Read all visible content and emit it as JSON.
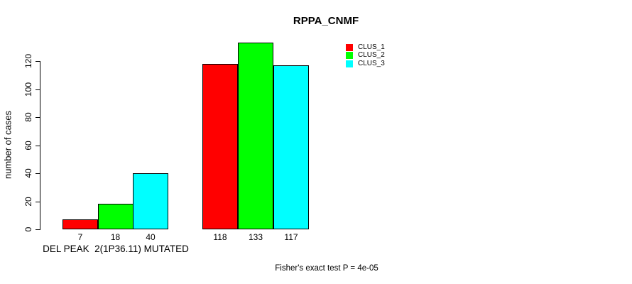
{
  "title": "RPPA_CNMF",
  "y_axis": {
    "label": "number of cases",
    "ticks": [
      0,
      20,
      40,
      60,
      80,
      100,
      120
    ]
  },
  "x_axis": {
    "label": "DEL PEAK  2(1P36.11) MUTATED"
  },
  "legend": {
    "items": [
      {
        "label": "CLUS_1",
        "color": "#FF0000"
      },
      {
        "label": "CLUS_2",
        "color": "#00FF00"
      },
      {
        "label": "CLUS_3",
        "color": "#00FFFF"
      }
    ]
  },
  "footer": "Fisher's exact test P = 4e-05",
  "chart_data": {
    "type": "bar",
    "title": "RPPA_CNMF",
    "xlabel": "DEL PEAK  2(1P36.11) MUTATED",
    "ylabel": "number of cases",
    "ylim": [
      0,
      140
    ],
    "yticks": [
      0,
      20,
      40,
      60,
      80,
      100,
      120
    ],
    "grid": false,
    "legend_position": "top-right",
    "categories": [
      "DEL PEAK  2(1P36.11) MUTATED",
      ""
    ],
    "series": [
      {
        "name": "CLUS_1",
        "color": "#FF0000",
        "values": [
          7,
          118
        ]
      },
      {
        "name": "CLUS_2",
        "color": "#00FF00",
        "values": [
          18,
          133
        ]
      },
      {
        "name": "CLUS_3",
        "color": "#00FFFF",
        "values": [
          40,
          117
        ]
      }
    ],
    "bar_value_labels": [
      [
        7,
        18,
        40
      ],
      [
        118,
        133,
        117
      ]
    ],
    "annotation": "Fisher's exact test P = 4e-05"
  }
}
